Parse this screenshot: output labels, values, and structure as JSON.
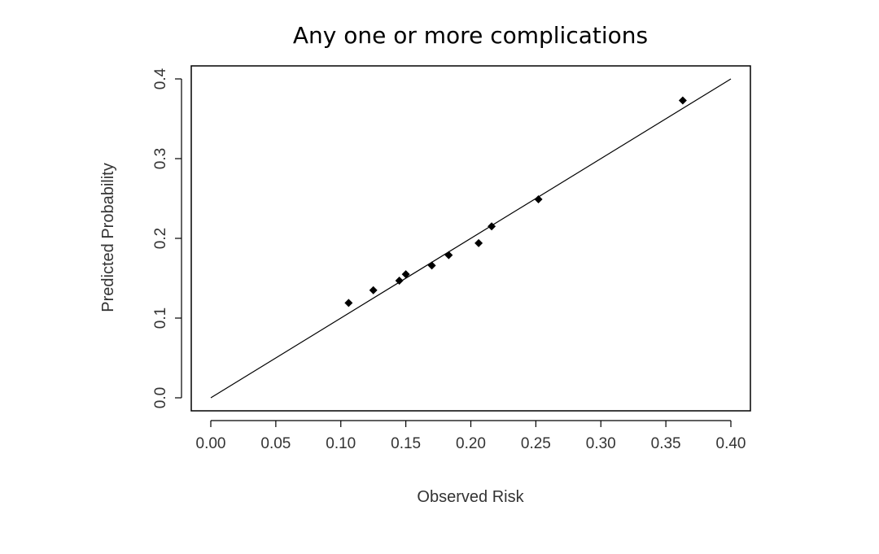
{
  "chart_data": {
    "type": "scatter",
    "title": "Any one or more complications",
    "xlabel": "Observed Risk",
    "ylabel": "Predicted Probability",
    "xlim": [
      0.0,
      0.4
    ],
    "ylim": [
      0.0,
      0.4
    ],
    "x_ticks": [
      "0.00",
      "0.05",
      "0.10",
      "0.15",
      "0.20",
      "0.25",
      "0.30",
      "0.35",
      "0.40"
    ],
    "y_ticks": [
      "0.0",
      "0.1",
      "0.2",
      "0.3",
      "0.4"
    ],
    "reference_line": {
      "from": [
        0.0,
        0.0
      ],
      "to": [
        0.4,
        0.4
      ]
    },
    "points": [
      {
        "x": 0.106,
        "y": 0.119
      },
      {
        "x": 0.125,
        "y": 0.135
      },
      {
        "x": 0.145,
        "y": 0.147
      },
      {
        "x": 0.15,
        "y": 0.155
      },
      {
        "x": 0.17,
        "y": 0.166
      },
      {
        "x": 0.183,
        "y": 0.179
      },
      {
        "x": 0.206,
        "y": 0.194
      },
      {
        "x": 0.216,
        "y": 0.215
      },
      {
        "x": 0.252,
        "y": 0.249
      },
      {
        "x": 0.363,
        "y": 0.373
      }
    ],
    "grid": false,
    "marker": "filled-diamond",
    "point_color": "#000000",
    "line_color": "#000000"
  }
}
